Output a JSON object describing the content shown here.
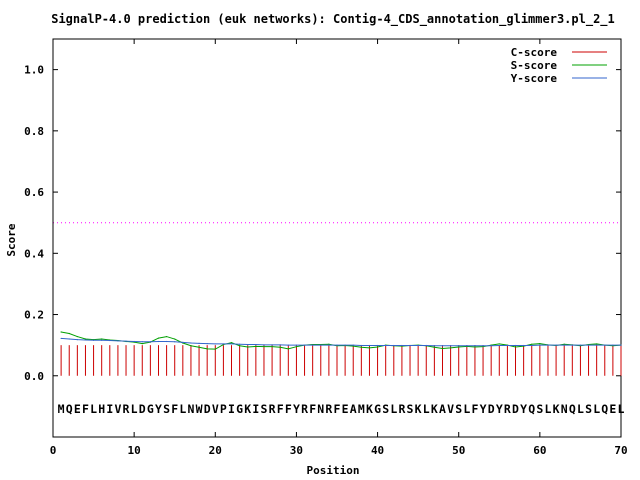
{
  "chart_data": {
    "type": "line",
    "title": "SignalP-4.0 prediction (euk networks): Contig-4_CDS_annotation_glimmer3.pl_2_1",
    "xlabel": "Position",
    "ylabel": "Score",
    "xlim": [
      0,
      70
    ],
    "ylim": [
      -0.2,
      1.1
    ],
    "x_ticks": [
      "0",
      "10",
      "20",
      "30",
      "40",
      "50",
      "60",
      "70"
    ],
    "y_ticks": [
      "0.0",
      "0.2",
      "0.4",
      "0.6",
      "0.8",
      "1.0"
    ],
    "x_tick_values": [
      0,
      10,
      20,
      30,
      40,
      50,
      60,
      70
    ],
    "y_tick_values": [
      0.0,
      0.2,
      0.4,
      0.6,
      0.8,
      1.0
    ],
    "legend_position": "top-right",
    "cutoff": {
      "value": 0.5,
      "color": "#ff00ff"
    },
    "sequence": "MQEFLHIVRLDGYSFLNWDVPIGKISRFFYRFNRFEAMKGSLRSKLKAVSLFYDYRDYQSLKNQLSLQEL",
    "series": [
      {
        "name": "C-score",
        "style": "impulses",
        "color": "#cc0000",
        "x": [
          1,
          2,
          3,
          4,
          5,
          6,
          7,
          8,
          9,
          10,
          11,
          12,
          13,
          14,
          15,
          16,
          17,
          18,
          19,
          20,
          21,
          22,
          23,
          24,
          25,
          26,
          27,
          28,
          29,
          30,
          31,
          32,
          33,
          34,
          35,
          36,
          37,
          38,
          39,
          40,
          41,
          42,
          43,
          44,
          45,
          46,
          47,
          48,
          49,
          50,
          51,
          52,
          53,
          54,
          55,
          56,
          57,
          58,
          59,
          60,
          61,
          62,
          63,
          64,
          65,
          66,
          67,
          68,
          69,
          70
        ],
        "values": [
          0.1,
          0.1,
          0.1,
          0.1,
          0.1,
          0.1,
          0.1,
          0.1,
          0.1,
          0.1,
          0.1,
          0.1,
          0.1,
          0.1,
          0.1,
          0.1,
          0.1,
          0.1,
          0.1,
          0.1,
          0.1,
          0.1,
          0.1,
          0.1,
          0.1,
          0.1,
          0.1,
          0.1,
          0.1,
          0.1,
          0.1,
          0.1,
          0.1,
          0.1,
          0.1,
          0.1,
          0.1,
          0.1,
          0.1,
          0.1,
          0.1,
          0.1,
          0.1,
          0.1,
          0.1,
          0.1,
          0.1,
          0.1,
          0.1,
          0.1,
          0.1,
          0.1,
          0.1,
          0.1,
          0.1,
          0.1,
          0.1,
          0.1,
          0.1,
          0.1,
          0.1,
          0.1,
          0.1,
          0.1,
          0.1,
          0.1,
          0.1,
          0.1,
          0.1,
          0.1
        ]
      },
      {
        "name": "S-score",
        "style": "line",
        "color": "#00a000",
        "x": [
          1,
          2,
          3,
          4,
          5,
          6,
          7,
          8,
          9,
          10,
          11,
          12,
          13,
          14,
          15,
          16,
          17,
          18,
          19,
          20,
          21,
          22,
          23,
          24,
          25,
          26,
          27,
          28,
          29,
          30,
          31,
          32,
          33,
          34,
          35,
          36,
          37,
          38,
          39,
          40,
          41,
          42,
          43,
          44,
          45,
          46,
          47,
          48,
          49,
          50,
          51,
          52,
          53,
          54,
          55,
          56,
          57,
          58,
          59,
          60,
          61,
          62,
          63,
          64,
          65,
          66,
          67,
          68,
          69,
          70
        ],
        "values": [
          0.143,
          0.138,
          0.128,
          0.12,
          0.118,
          0.12,
          0.117,
          0.115,
          0.112,
          0.11,
          0.105,
          0.11,
          0.123,
          0.128,
          0.12,
          0.107,
          0.098,
          0.093,
          0.088,
          0.087,
          0.102,
          0.108,
          0.098,
          0.094,
          0.096,
          0.095,
          0.095,
          0.093,
          0.088,
          0.095,
          0.1,
          0.102,
          0.102,
          0.103,
          0.098,
          0.099,
          0.097,
          0.093,
          0.091,
          0.094,
          0.1,
          0.098,
          0.097,
          0.099,
          0.1,
          0.098,
          0.093,
          0.089,
          0.091,
          0.094,
          0.096,
          0.094,
          0.095,
          0.1,
          0.104,
          0.1,
          0.094,
          0.097,
          0.103,
          0.105,
          0.101,
          0.099,
          0.103,
          0.101,
          0.098,
          0.102,
          0.104,
          0.1,
          0.098,
          0.1
        ]
      },
      {
        "name": "Y-score",
        "style": "line",
        "color": "#3366cc",
        "x": [
          1,
          2,
          3,
          4,
          5,
          6,
          7,
          8,
          9,
          10,
          11,
          12,
          13,
          14,
          15,
          16,
          17,
          18,
          19,
          20,
          21,
          22,
          23,
          24,
          25,
          26,
          27,
          28,
          29,
          30,
          31,
          32,
          33,
          34,
          35,
          36,
          37,
          38,
          39,
          40,
          41,
          42,
          43,
          44,
          45,
          46,
          47,
          48,
          49,
          50,
          51,
          52,
          53,
          54,
          55,
          56,
          57,
          58,
          59,
          60,
          61,
          62,
          63,
          64,
          65,
          66,
          67,
          68,
          69,
          70
        ],
        "values": [
          0.122,
          0.12,
          0.118,
          0.117,
          0.116,
          0.116,
          0.115,
          0.114,
          0.113,
          0.112,
          0.111,
          0.111,
          0.112,
          0.112,
          0.111,
          0.109,
          0.107,
          0.106,
          0.105,
          0.104,
          0.104,
          0.104,
          0.103,
          0.102,
          0.102,
          0.101,
          0.101,
          0.101,
          0.1,
          0.1,
          0.1,
          0.1,
          0.1,
          0.1,
          0.1,
          0.1,
          0.1,
          0.099,
          0.099,
          0.099,
          0.099,
          0.099,
          0.099,
          0.099,
          0.099,
          0.099,
          0.098,
          0.098,
          0.098,
          0.098,
          0.098,
          0.098,
          0.098,
          0.098,
          0.099,
          0.099,
          0.099,
          0.099,
          0.099,
          0.1,
          0.1,
          0.1,
          0.1,
          0.1,
          0.1,
          0.1,
          0.1,
          0.1,
          0.1,
          0.1
        ]
      }
    ]
  }
}
